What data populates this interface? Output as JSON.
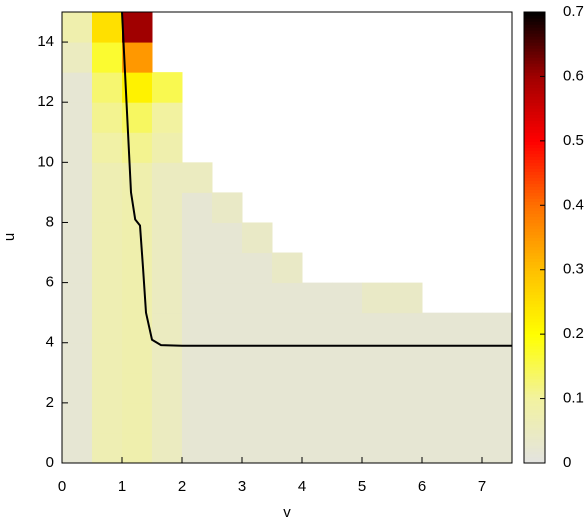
{
  "chart_data": {
    "type": "heatmap",
    "xlabel": "v",
    "ylabel": "u",
    "xbins": [
      0,
      0.5,
      1,
      1.5,
      2,
      2.5,
      3,
      3.5,
      4,
      4.5,
      5,
      5.5,
      6,
      6.5,
      7,
      7.5
    ],
    "ybins": [
      0,
      1,
      2,
      3,
      4,
      5,
      6,
      7,
      8,
      9,
      10,
      11,
      12,
      13,
      14,
      15
    ],
    "z": [
      [
        0.02,
        0.07,
        0.08,
        0.05,
        0.02,
        0.02,
        0.02,
        0.02,
        0.02,
        0.02,
        0.02,
        0.02,
        0.02,
        0.02,
        0.02
      ],
      [
        0.02,
        0.07,
        0.08,
        0.05,
        0.02,
        0.02,
        0.02,
        0.02,
        0.02,
        0.02,
        0.02,
        0.02,
        0.02,
        0.02,
        0.02
      ],
      [
        0.02,
        0.07,
        0.08,
        0.05,
        0.02,
        0.02,
        0.02,
        0.02,
        0.02,
        0.02,
        0.02,
        0.02,
        0.02,
        0.02,
        0.02
      ],
      [
        0.02,
        0.07,
        0.08,
        0.05,
        0.02,
        0.02,
        0.02,
        0.02,
        0.02,
        0.02,
        0.02,
        0.02,
        0.02,
        0.02,
        0.02
      ],
      [
        0.02,
        0.07,
        0.08,
        0.05,
        0.02,
        0.02,
        0.02,
        0.02,
        0.02,
        0.02,
        0.02,
        0.02,
        0.02,
        0.02,
        0.02
      ],
      [
        0.02,
        0.07,
        0.08,
        0.05,
        0.02,
        0.02,
        0.02,
        0.02,
        0.02,
        0.02,
        0.04,
        0.04,
        null,
        null,
        null
      ],
      [
        0.02,
        0.07,
        0.08,
        0.05,
        0.02,
        0.02,
        0.02,
        0.04,
        null,
        null,
        null,
        null,
        null,
        null,
        null
      ],
      [
        0.02,
        0.07,
        0.08,
        0.05,
        0.02,
        0.02,
        0.04,
        null,
        null,
        null,
        null,
        null,
        null,
        null,
        null
      ],
      [
        0.02,
        0.07,
        0.08,
        0.05,
        0.02,
        0.04,
        null,
        null,
        null,
        null,
        null,
        null,
        null,
        null,
        null
      ],
      [
        0.02,
        0.07,
        0.08,
        0.05,
        0.05,
        null,
        null,
        null,
        null,
        null,
        null,
        null,
        null,
        null,
        null
      ],
      [
        0.02,
        0.09,
        0.11,
        0.08,
        null,
        null,
        null,
        null,
        null,
        null,
        null,
        null,
        null,
        null,
        null
      ],
      [
        0.02,
        0.11,
        0.14,
        0.1,
        null,
        null,
        null,
        null,
        null,
        null,
        null,
        null,
        null,
        null,
        null
      ],
      [
        0.02,
        0.13,
        0.22,
        0.15,
        null,
        null,
        null,
        null,
        null,
        null,
        null,
        null,
        null,
        null,
        null
      ],
      [
        0.05,
        0.17,
        0.35,
        null,
        null,
        null,
        null,
        null,
        null,
        null,
        null,
        null,
        null,
        null,
        null
      ],
      [
        0.08,
        0.25,
        0.6,
        null,
        null,
        null,
        null,
        null,
        null,
        null,
        null,
        null,
        null,
        null,
        null
      ]
    ],
    "colormap": [
      "#e3e3e0",
      "#f2f2a0",
      "#ffff00",
      "#ffc000",
      "#ff7000",
      "#ff0000",
      "#a00000",
      "#000000"
    ],
    "clim": [
      0,
      0.7
    ],
    "cticks": [
      0,
      0.1,
      0.2,
      0.3,
      0.4,
      0.5,
      0.6,
      0.7
    ],
    "line": {
      "color": "#000000",
      "x": [
        1.0,
        1.05,
        1.1,
        1.15,
        1.22,
        1.3,
        1.35,
        1.4,
        1.5,
        1.65,
        2,
        7.5
      ],
      "y": [
        15,
        13,
        11,
        9,
        8.1,
        7.9,
        6.5,
        5,
        4.1,
        3.92,
        3.9,
        3.9
      ]
    },
    "xlim": [
      0,
      7.5
    ],
    "xticks": [
      0,
      1,
      2,
      3,
      4,
      5,
      6,
      7
    ],
    "ylim": [
      0,
      15
    ],
    "yticks": [
      0,
      2,
      4,
      6,
      8,
      10,
      12,
      14
    ]
  }
}
